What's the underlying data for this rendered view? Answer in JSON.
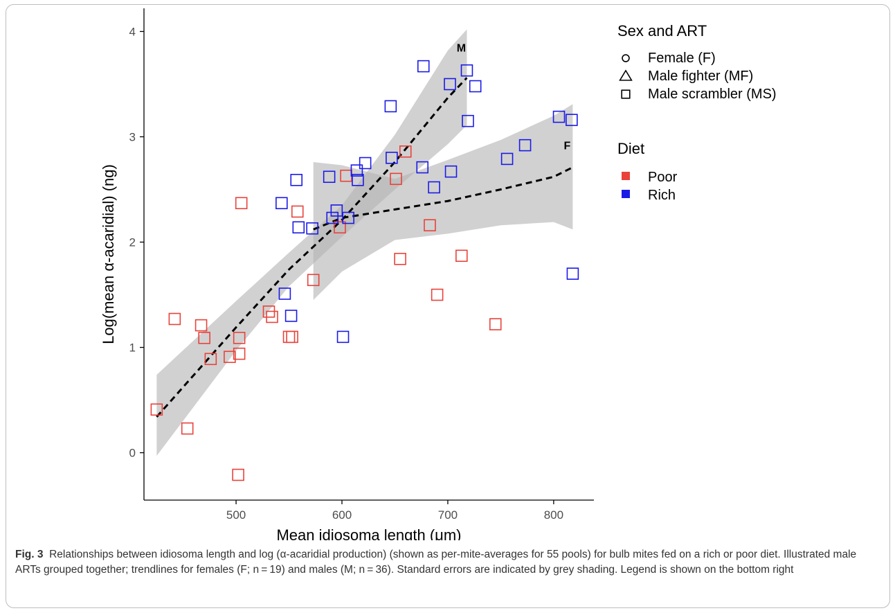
{
  "caption": {
    "label": "Fig. 3",
    "text": "Relationships between idiosoma length and log (α-acaridial production) (shown as per-mite-averages for 55 pools) for bulb mites fed on a rich or poor diet. Illustrated male ARTs grouped together; trendlines for females (F; n = 19) and males (M; n = 36). Standard errors are indicated by grey shading. Legend is shown on the bottom right"
  },
  "chart_data": {
    "type": "scatter",
    "xlabel": "Mean idiosoma length (μm)",
    "ylabel": "Log(mean α-acaridial) (ng)",
    "xlim": [
      413,
      838
    ],
    "ylim": [
      -0.45,
      4.22
    ],
    "x_ticks": [
      500,
      600,
      700,
      800
    ],
    "y_ticks": [
      0,
      1,
      2,
      3,
      4
    ],
    "grid": false,
    "colors": {
      "Poor": "#e8423a",
      "Rich": "#1a1ae6",
      "trend": "#000000",
      "band": "#b3b3b3"
    },
    "legend": {
      "shape_title": "Sex and ART",
      "shapes": [
        {
          "key": "F",
          "label": "Female (F)",
          "shape": "circle"
        },
        {
          "key": "MF",
          "label": "Male fighter (MF)",
          "shape": "triangle"
        },
        {
          "key": "MS",
          "label": "Male scrambler (MS)",
          "shape": "square"
        }
      ],
      "color_title": "Diet",
      "colors": [
        {
          "key": "Poor",
          "label": "Poor"
        },
        {
          "key": "Rich",
          "label": "Rich"
        }
      ]
    },
    "points": [
      {
        "x": 425,
        "y": 0.41,
        "shape": "MS",
        "diet": "Poor"
      },
      {
        "x": 442,
        "y": 1.27,
        "shape": "MS",
        "diet": "Poor"
      },
      {
        "x": 454,
        "y": 0.23,
        "shape": "MS",
        "diet": "Poor"
      },
      {
        "x": 470,
        "y": 1.09,
        "shape": "MS",
        "diet": "Poor"
      },
      {
        "x": 494,
        "y": 0.91,
        "shape": "MS",
        "diet": "Poor"
      },
      {
        "x": 503,
        "y": 0.94,
        "shape": "MS",
        "diet": "Poor"
      },
      {
        "x": 503,
        "y": 1.09,
        "shape": "MS",
        "diet": "Poor"
      },
      {
        "x": 531,
        "y": 1.34,
        "shape": "MS",
        "diet": "Poor"
      },
      {
        "x": 467,
        "y": 1.21,
        "shape": "MF",
        "diet": "Poor"
      },
      {
        "x": 476,
        "y": 0.89,
        "shape": "MF",
        "diet": "Poor"
      },
      {
        "x": 502,
        "y": -0.21,
        "shape": "MF",
        "diet": "Poor"
      },
      {
        "x": 505,
        "y": 2.37,
        "shape": "MF",
        "diet": "Poor"
      },
      {
        "x": 534,
        "y": 1.29,
        "shape": "MF",
        "diet": "Poor"
      },
      {
        "x": 550,
        "y": 1.1,
        "shape": "MF",
        "diet": "Poor"
      },
      {
        "x": 553,
        "y": 1.1,
        "shape": "MF",
        "diet": "Poor"
      },
      {
        "x": 558,
        "y": 2.29,
        "shape": "MF",
        "diet": "Poor"
      },
      {
        "x": 573,
        "y": 1.64,
        "shape": "F",
        "diet": "Poor"
      },
      {
        "x": 598,
        "y": 2.14,
        "shape": "F",
        "diet": "Poor"
      },
      {
        "x": 604,
        "y": 2.63,
        "shape": "F",
        "diet": "Poor"
      },
      {
        "x": 651,
        "y": 2.6,
        "shape": "F",
        "diet": "Poor"
      },
      {
        "x": 655,
        "y": 1.84,
        "shape": "F",
        "diet": "Poor"
      },
      {
        "x": 660,
        "y": 2.86,
        "shape": "F",
        "diet": "Poor"
      },
      {
        "x": 683,
        "y": 2.16,
        "shape": "F",
        "diet": "Poor"
      },
      {
        "x": 690,
        "y": 1.5,
        "shape": "F",
        "diet": "Poor"
      },
      {
        "x": 713,
        "y": 1.87,
        "shape": "F",
        "diet": "Poor"
      },
      {
        "x": 745,
        "y": 1.22,
        "shape": "F",
        "diet": "Poor"
      },
      {
        "x": 546,
        "y": 1.51,
        "shape": "MS",
        "diet": "Rich"
      },
      {
        "x": 559,
        "y": 2.14,
        "shape": "MS",
        "diet": "Rich"
      },
      {
        "x": 588,
        "y": 2.62,
        "shape": "MS",
        "diet": "Rich"
      },
      {
        "x": 614,
        "y": 2.68,
        "shape": "MS",
        "diet": "Rich"
      },
      {
        "x": 622,
        "y": 2.75,
        "shape": "MS",
        "diet": "Rich"
      },
      {
        "x": 646,
        "y": 3.29,
        "shape": "MS",
        "diet": "Rich"
      },
      {
        "x": 677,
        "y": 3.67,
        "shape": "MS",
        "diet": "Rich"
      },
      {
        "x": 702,
        "y": 3.5,
        "shape": "MS",
        "diet": "Rich"
      },
      {
        "x": 703,
        "y": 2.67,
        "shape": "MS",
        "diet": "Rich"
      },
      {
        "x": 718,
        "y": 3.63,
        "shape": "MS",
        "diet": "Rich"
      },
      {
        "x": 543,
        "y": 2.37,
        "shape": "MF",
        "diet": "Rich"
      },
      {
        "x": 552,
        "y": 1.3,
        "shape": "MF",
        "diet": "Rich"
      },
      {
        "x": 557,
        "y": 2.59,
        "shape": "MF",
        "diet": "Rich"
      },
      {
        "x": 572,
        "y": 2.13,
        "shape": "MF",
        "diet": "Rich"
      },
      {
        "x": 591,
        "y": 2.23,
        "shape": "MF",
        "diet": "Rich"
      },
      {
        "x": 595,
        "y": 2.3,
        "shape": "MF",
        "diet": "Rich"
      },
      {
        "x": 601,
        "y": 1.1,
        "shape": "MF",
        "diet": "Rich"
      },
      {
        "x": 606,
        "y": 2.23,
        "shape": "MF",
        "diet": "Rich"
      },
      {
        "x": 615,
        "y": 2.59,
        "shape": "MF",
        "diet": "Rich"
      },
      {
        "x": 647,
        "y": 2.8,
        "shape": "MF",
        "diet": "Rich"
      },
      {
        "x": 676,
        "y": 2.71,
        "shape": "F",
        "diet": "Rich"
      },
      {
        "x": 687,
        "y": 2.52,
        "shape": "F",
        "diet": "Rich"
      },
      {
        "x": 719,
        "y": 3.15,
        "shape": "F",
        "diet": "Rich"
      },
      {
        "x": 726,
        "y": 3.48,
        "shape": "F",
        "diet": "Rich"
      },
      {
        "x": 756,
        "y": 2.79,
        "shape": "F",
        "diet": "Rich"
      },
      {
        "x": 773,
        "y": 2.92,
        "shape": "F",
        "diet": "Rich"
      },
      {
        "x": 805,
        "y": 3.19,
        "shape": "F",
        "diet": "Rich"
      },
      {
        "x": 817,
        "y": 3.16,
        "shape": "F",
        "diet": "Rich"
      },
      {
        "x": 818,
        "y": 1.7,
        "shape": "F",
        "diet": "Rich"
      }
    ],
    "trendlines": [
      {
        "name": "M",
        "x": [
          425,
          500,
          550,
          600,
          650,
          700,
          718
        ],
        "y": [
          0.34,
          1.19,
          1.74,
          2.21,
          2.76,
          3.37,
          3.56
        ],
        "band_upper": [
          0.74,
          1.44,
          1.9,
          2.35,
          3.02,
          3.82,
          4.02
        ],
        "band_lower": [
          -0.03,
          0.97,
          1.58,
          2.05,
          2.5,
          2.93,
          3.11
        ]
      },
      {
        "name": "F",
        "x": [
          573,
          600,
          650,
          700,
          750,
          800,
          818
        ],
        "y": [
          2.12,
          2.23,
          2.31,
          2.39,
          2.5,
          2.62,
          2.71
        ],
        "band_upper": [
          2.76,
          2.73,
          2.6,
          2.78,
          2.97,
          3.2,
          3.31
        ],
        "band_lower": [
          1.45,
          1.72,
          2.02,
          2.08,
          2.16,
          2.19,
          2.12
        ]
      }
    ]
  }
}
